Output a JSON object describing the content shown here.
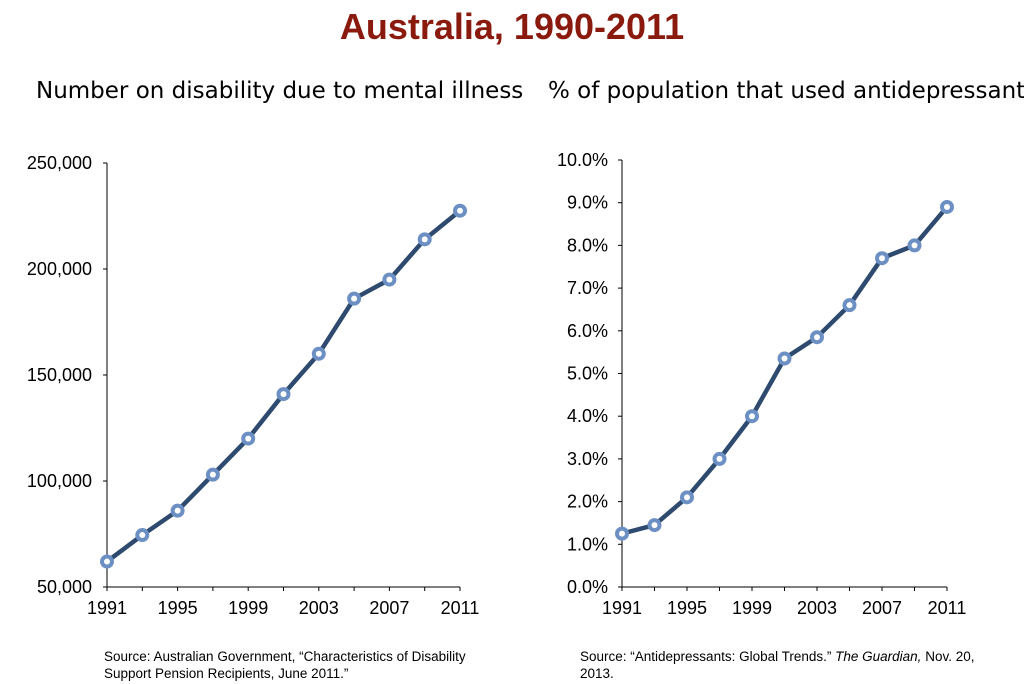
{
  "title": "Australia, 1990-2011",
  "chart_data": [
    {
      "type": "line",
      "title": "Number on disability due to mental illness",
      "xlabel": "",
      "ylabel": "",
      "x": [
        1991,
        1993,
        1995,
        1997,
        1999,
        2001,
        2003,
        2005,
        2007,
        2009,
        2011
      ],
      "series": [
        {
          "values": [
            62000,
            74500,
            86000,
            103000,
            120000,
            141000,
            160000,
            186000,
            195000,
            214000,
            227500
          ]
        }
      ],
      "xlim": [
        1991,
        2011
      ],
      "ylim": [
        50000,
        250000
      ],
      "x_ticks": [
        "1991",
        "1995",
        "1999",
        "2003",
        "2007",
        "2011"
      ],
      "y_ticks": [
        "50,000",
        "100,000",
        "150,000",
        "200,000",
        "250,000"
      ],
      "grid": false,
      "line_color": "#2e4a6f",
      "marker_color": "#6d90c4",
      "source": {
        "line1": "Source:  Australian Government, “Characteristics of Disability",
        "line2": "Support Pension Recipients, June 2011.”"
      }
    },
    {
      "type": "line",
      "title": "% of population that used antidepressants",
      "xlabel": "",
      "ylabel": "",
      "x": [
        1991,
        1993,
        1995,
        1997,
        1999,
        2001,
        2003,
        2005,
        2007,
        2009,
        2011
      ],
      "series": [
        {
          "values": [
            1.25,
            1.45,
            2.1,
            3.0,
            4.0,
            5.35,
            5.85,
            6.6,
            7.7,
            8.0,
            8.9
          ]
        }
      ],
      "xlim": [
        1991,
        2011
      ],
      "ylim": [
        0,
        10
      ],
      "x_ticks": [
        "1991",
        "1995",
        "1999",
        "2003",
        "2007",
        "2011"
      ],
      "y_ticks": [
        "0.0%",
        "1.0%",
        "2.0%",
        "3.0%",
        "4.0%",
        "5.0%",
        "6.0%",
        "7.0%",
        "8.0%",
        "9.0%",
        "10.0%"
      ],
      "grid": false,
      "line_color": "#2e4a6f",
      "marker_color": "#6d90c4",
      "source": {
        "prefix": "Source:  “Antidepressants: Global Trends.” ",
        "publication": "The Guardian,",
        "suffix": "  Nov. 20,",
        "line2": "2013."
      }
    }
  ]
}
